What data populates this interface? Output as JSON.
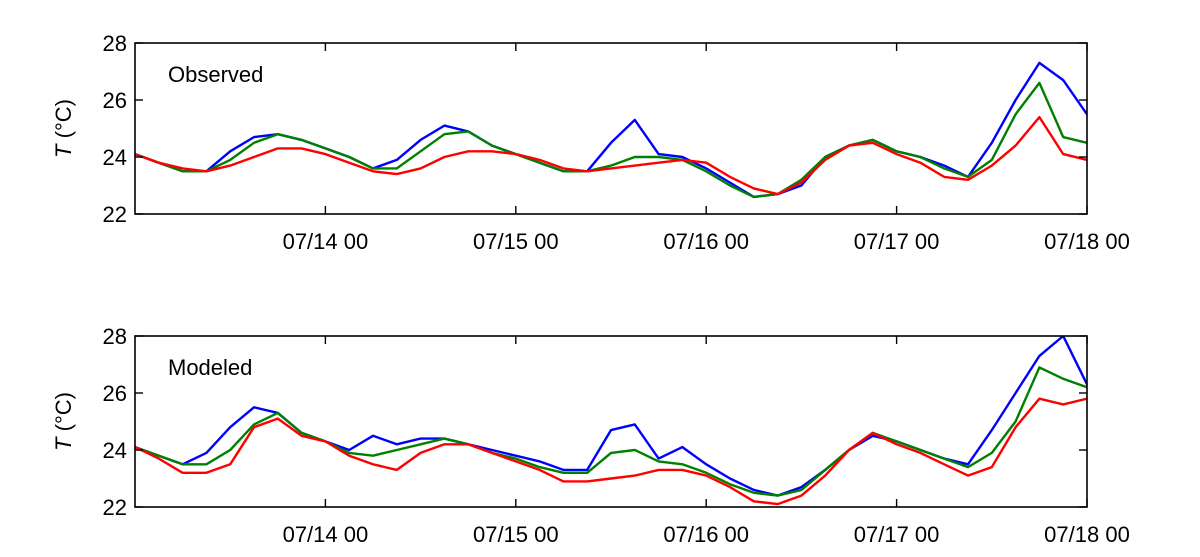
{
  "chart_data": [
    {
      "type": "line",
      "title": "Observed",
      "ylabel": "T (°C)",
      "ylabel_italic": "T",
      "ylabel_unit": " (°C)",
      "ylim": [
        22,
        28
      ],
      "yticks": [
        22,
        24,
        26,
        28
      ],
      "xlim": [
        "07/13 00",
        "07/18 00"
      ],
      "xticks": [
        "07/14 00",
        "07/15 00",
        "07/16 00",
        "07/17 00",
        "07/18 00"
      ],
      "grid": false,
      "series": [
        {
          "color": "#0000ff",
          "x": [
            "07/13 00",
            "07/13 03",
            "07/13 06",
            "07/13 09",
            "07/13 12",
            "07/13 15",
            "07/13 18",
            "07/13 21",
            "07/14 00",
            "07/14 03",
            "07/14 06",
            "07/14 09",
            "07/14 12",
            "07/14 15",
            "07/14 18",
            "07/14 21",
            "07/15 00",
            "07/15 03",
            "07/15 06",
            "07/15 09",
            "07/15 12",
            "07/15 15",
            "07/15 18",
            "07/15 21",
            "07/16 00",
            "07/16 03",
            "07/16 06",
            "07/16 09",
            "07/16 12",
            "07/16 15",
            "07/16 18",
            "07/16 21",
            "07/17 00",
            "07/17 03",
            "07/17 06",
            "07/17 09",
            "07/17 12",
            "07/17 15",
            "07/17 18",
            "07/17 21",
            "07/18 00"
          ],
          "y": [
            24.1,
            23.8,
            23.5,
            23.5,
            24.2,
            24.7,
            24.8,
            24.6,
            24.3,
            24.0,
            23.6,
            23.9,
            24.6,
            25.1,
            24.9,
            24.4,
            24.1,
            23.8,
            23.5,
            23.5,
            24.5,
            25.3,
            24.1,
            24.0,
            23.6,
            23.1,
            22.6,
            22.7,
            23.0,
            24.0,
            24.4,
            24.6,
            24.2,
            24.0,
            23.7,
            23.3,
            24.5,
            26.0,
            27.3,
            26.7,
            25.5
          ]
        },
        {
          "color": "#008000",
          "x": [
            "07/13 00",
            "07/13 03",
            "07/13 06",
            "07/13 09",
            "07/13 12",
            "07/13 15",
            "07/13 18",
            "07/13 21",
            "07/14 00",
            "07/14 03",
            "07/14 06",
            "07/14 09",
            "07/14 12",
            "07/14 15",
            "07/14 18",
            "07/14 21",
            "07/15 00",
            "07/15 03",
            "07/15 06",
            "07/15 09",
            "07/15 12",
            "07/15 15",
            "07/15 18",
            "07/15 21",
            "07/16 00",
            "07/16 03",
            "07/16 06",
            "07/16 09",
            "07/16 12",
            "07/16 15",
            "07/16 18",
            "07/16 21",
            "07/17 00",
            "07/17 03",
            "07/17 06",
            "07/17 09",
            "07/17 12",
            "07/17 15",
            "07/17 18",
            "07/17 21",
            "07/18 00"
          ],
          "y": [
            24.1,
            23.8,
            23.5,
            23.5,
            23.9,
            24.5,
            24.8,
            24.6,
            24.3,
            24.0,
            23.6,
            23.6,
            24.2,
            24.8,
            24.9,
            24.4,
            24.1,
            23.8,
            23.5,
            23.5,
            23.7,
            24.0,
            24.0,
            23.9,
            23.5,
            23.0,
            22.6,
            22.7,
            23.2,
            24.0,
            24.4,
            24.6,
            24.2,
            24.0,
            23.6,
            23.3,
            23.9,
            25.5,
            26.6,
            24.7,
            24.5
          ]
        },
        {
          "color": "#ff0000",
          "x": [
            "07/13 00",
            "07/13 03",
            "07/13 06",
            "07/13 09",
            "07/13 12",
            "07/13 15",
            "07/13 18",
            "07/13 21",
            "07/14 00",
            "07/14 03",
            "07/14 06",
            "07/14 09",
            "07/14 12",
            "07/14 15",
            "07/14 18",
            "07/14 21",
            "07/15 00",
            "07/15 03",
            "07/15 06",
            "07/15 09",
            "07/15 12",
            "07/15 15",
            "07/15 18",
            "07/15 21",
            "07/16 00",
            "07/16 03",
            "07/16 06",
            "07/16 09",
            "07/16 12",
            "07/16 15",
            "07/16 18",
            "07/16 21",
            "07/17 00",
            "07/17 03",
            "07/17 06",
            "07/17 09",
            "07/17 12",
            "07/17 15",
            "07/17 18",
            "07/17 21",
            "07/18 00"
          ],
          "y": [
            24.1,
            23.8,
            23.6,
            23.5,
            23.7,
            24.0,
            24.3,
            24.3,
            24.1,
            23.8,
            23.5,
            23.4,
            23.6,
            24.0,
            24.2,
            24.2,
            24.1,
            23.9,
            23.6,
            23.5,
            23.6,
            23.7,
            23.8,
            23.9,
            23.8,
            23.3,
            22.9,
            22.7,
            23.1,
            23.9,
            24.4,
            24.5,
            24.1,
            23.8,
            23.3,
            23.2,
            23.7,
            24.4,
            25.4,
            24.1,
            23.9
          ]
        }
      ]
    },
    {
      "type": "line",
      "title": "Modeled",
      "ylabel": "T (°C)",
      "ylabel_italic": "T",
      "ylabel_unit": " (°C)",
      "ylim": [
        22,
        28
      ],
      "yticks": [
        22,
        24,
        26,
        28
      ],
      "xlim": [
        "07/13 00",
        "07/18 00"
      ],
      "xticks": [
        "07/14 00",
        "07/15 00",
        "07/16 00",
        "07/17 00",
        "07/18 00"
      ],
      "grid": false,
      "series": [
        {
          "color": "#0000ff",
          "x": [
            "07/13 00",
            "07/13 03",
            "07/13 06",
            "07/13 09",
            "07/13 12",
            "07/13 15",
            "07/13 18",
            "07/13 21",
            "07/14 00",
            "07/14 03",
            "07/14 06",
            "07/14 09",
            "07/14 12",
            "07/14 15",
            "07/14 18",
            "07/14 21",
            "07/15 00",
            "07/15 03",
            "07/15 06",
            "07/15 09",
            "07/15 12",
            "07/15 15",
            "07/15 18",
            "07/15 21",
            "07/16 00",
            "07/16 03",
            "07/16 06",
            "07/16 09",
            "07/16 12",
            "07/16 15",
            "07/16 18",
            "07/16 21",
            "07/17 00",
            "07/17 03",
            "07/17 06",
            "07/17 09",
            "07/17 12",
            "07/17 15",
            "07/17 18",
            "07/17 21",
            "07/18 00"
          ],
          "y": [
            24.1,
            23.8,
            23.5,
            23.9,
            24.8,
            25.5,
            25.3,
            24.6,
            24.3,
            24.0,
            24.5,
            24.2,
            24.4,
            24.4,
            24.2,
            24.0,
            23.8,
            23.6,
            23.3,
            23.3,
            24.7,
            24.9,
            23.7,
            24.1,
            23.5,
            23.0,
            22.6,
            22.4,
            22.7,
            23.3,
            24.0,
            24.5,
            24.3,
            24.0,
            23.7,
            23.5,
            24.7,
            26.0,
            27.3,
            28.0,
            26.3
          ]
        },
        {
          "color": "#008000",
          "x": [
            "07/13 00",
            "07/13 03",
            "07/13 06",
            "07/13 09",
            "07/13 12",
            "07/13 15",
            "07/13 18",
            "07/13 21",
            "07/14 00",
            "07/14 03",
            "07/14 06",
            "07/14 09",
            "07/14 12",
            "07/14 15",
            "07/14 18",
            "07/14 21",
            "07/15 00",
            "07/15 03",
            "07/15 06",
            "07/15 09",
            "07/15 12",
            "07/15 15",
            "07/15 18",
            "07/15 21",
            "07/16 00",
            "07/16 03",
            "07/16 06",
            "07/16 09",
            "07/16 12",
            "07/16 15",
            "07/16 18",
            "07/16 21",
            "07/17 00",
            "07/17 03",
            "07/17 06",
            "07/17 09",
            "07/17 12",
            "07/17 15",
            "07/17 18",
            "07/17 21",
            "07/18 00"
          ],
          "y": [
            24.1,
            23.8,
            23.5,
            23.5,
            24.0,
            24.9,
            25.3,
            24.6,
            24.3,
            23.9,
            23.8,
            24.0,
            24.2,
            24.4,
            24.2,
            23.9,
            23.7,
            23.4,
            23.2,
            23.2,
            23.9,
            24.0,
            23.6,
            23.5,
            23.2,
            22.8,
            22.5,
            22.4,
            22.6,
            23.3,
            24.0,
            24.6,
            24.3,
            24.0,
            23.7,
            23.4,
            23.9,
            25.0,
            26.9,
            26.5,
            26.2
          ]
        },
        {
          "color": "#ff0000",
          "x": [
            "07/13 00",
            "07/13 03",
            "07/13 06",
            "07/13 09",
            "07/13 12",
            "07/13 15",
            "07/13 18",
            "07/13 21",
            "07/14 00",
            "07/14 03",
            "07/14 06",
            "07/14 09",
            "07/14 12",
            "07/14 15",
            "07/14 18",
            "07/14 21",
            "07/15 00",
            "07/15 03",
            "07/15 06",
            "07/15 09",
            "07/15 12",
            "07/15 15",
            "07/15 18",
            "07/15 21",
            "07/16 00",
            "07/16 03",
            "07/16 06",
            "07/16 09",
            "07/16 12",
            "07/16 15",
            "07/16 18",
            "07/16 21",
            "07/17 00",
            "07/17 03",
            "07/17 06",
            "07/17 09",
            "07/17 12",
            "07/17 15",
            "07/17 18",
            "07/17 21",
            "07/18 00"
          ],
          "y": [
            24.1,
            23.7,
            23.2,
            23.2,
            23.5,
            24.8,
            25.1,
            24.5,
            24.3,
            23.8,
            23.5,
            23.3,
            23.9,
            24.2,
            24.2,
            23.9,
            23.6,
            23.3,
            22.9,
            22.9,
            23.0,
            23.1,
            23.3,
            23.3,
            23.1,
            22.7,
            22.2,
            22.1,
            22.4,
            23.1,
            24.0,
            24.6,
            24.2,
            23.9,
            23.5,
            23.1,
            23.4,
            24.8,
            25.8,
            25.6,
            25.8
          ]
        }
      ]
    }
  ]
}
